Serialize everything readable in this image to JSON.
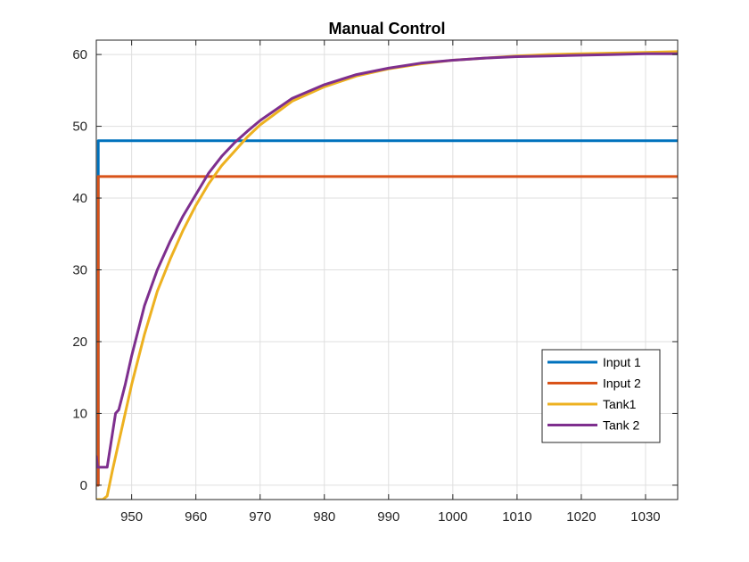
{
  "chart_data": {
    "type": "line",
    "title": "Manual Control",
    "xlabel": "",
    "ylabel": "",
    "xlim": [
      944.5,
      1035
    ],
    "ylim": [
      -2,
      62
    ],
    "xticks": [
      950,
      960,
      970,
      980,
      990,
      1000,
      1010,
      1020,
      1030
    ],
    "yticks": [
      0,
      10,
      20,
      30,
      40,
      50,
      60
    ],
    "grid": true,
    "legend_position": "bottom-right",
    "series": [
      {
        "name": "Input 1",
        "color": "#0072BD",
        "x": [
          944.5,
          944.8,
          944.8,
          1035
        ],
        "y": [
          0,
          0,
          48,
          48
        ]
      },
      {
        "name": "Input 2",
        "color": "#D95319",
        "x": [
          944.5,
          944.8,
          944.8,
          1035
        ],
        "y": [
          0,
          0,
          43,
          43
        ]
      },
      {
        "name": "Tank1",
        "color": "#EDB120",
        "x": [
          944.5,
          945.5,
          946.2,
          947,
          948,
          949,
          950,
          952,
          954,
          956,
          958,
          960,
          962,
          964,
          966,
          968,
          970,
          975,
          980,
          985,
          990,
          995,
          1000,
          1005,
          1010,
          1015,
          1020,
          1025,
          1030,
          1035
        ],
        "y": [
          -2,
          -2,
          -1.5,
          2,
          6,
          10,
          14,
          21,
          27,
          31.5,
          35.5,
          39,
          42,
          44.5,
          46.5,
          48.5,
          50.2,
          53.5,
          55.5,
          57,
          58,
          58.7,
          59.2,
          59.5,
          59.8,
          60,
          60.1,
          60.2,
          60.3,
          60.4
        ]
      },
      {
        "name": "Tank 2",
        "color": "#7E2F8E",
        "x": [
          944.5,
          944.7,
          944.9,
          945.5,
          946.2,
          946.8,
          947.5,
          948,
          949,
          950,
          952,
          954,
          956,
          958,
          960,
          962,
          964,
          966,
          968,
          970,
          975,
          980,
          985,
          990,
          995,
          1000,
          1005,
          1010,
          1015,
          1020,
          1025,
          1030,
          1035
        ],
        "y": [
          4,
          2.5,
          2.5,
          2.5,
          2.5,
          6,
          10,
          10.5,
          14,
          18,
          25,
          30,
          34,
          37.5,
          40.5,
          43.5,
          45.8,
          47.7,
          49.3,
          50.8,
          53.9,
          55.8,
          57.2,
          58.1,
          58.8,
          59.2,
          59.5,
          59.7,
          59.8,
          59.9,
          60,
          60.1,
          60.1
        ]
      }
    ]
  }
}
